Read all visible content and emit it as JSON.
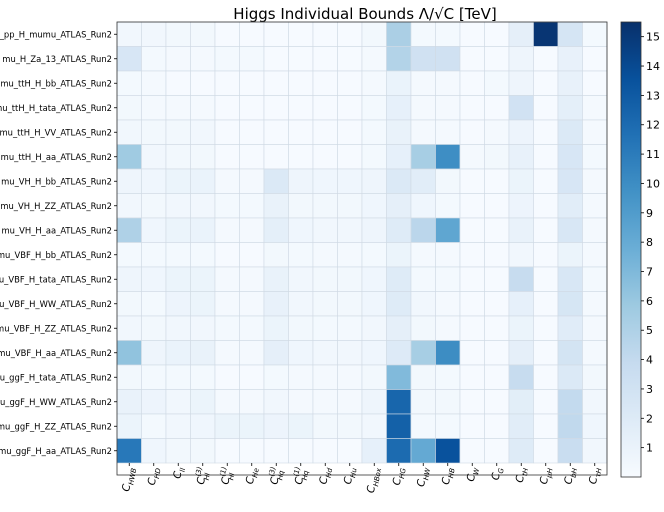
{
  "chart_data": {
    "type": "heatmap",
    "title": "Higgs Individual Bounds Λ/√C [TeV]",
    "x_labels": [
      {
        "base": "C",
        "sub": "HWB",
        "sup": ""
      },
      {
        "base": "C",
        "sub": "HD",
        "sup": ""
      },
      {
        "base": "C",
        "sub": "ll",
        "sup": ""
      },
      {
        "base": "C",
        "sub": "Hl",
        "sup": "(3)"
      },
      {
        "base": "C",
        "sub": "Hl",
        "sup": "(1)"
      },
      {
        "base": "C",
        "sub": "He",
        "sup": ""
      },
      {
        "base": "C",
        "sub": "Hq",
        "sup": "(3)"
      },
      {
        "base": "C",
        "sub": "Hq",
        "sup": "(1)"
      },
      {
        "base": "C",
        "sub": "Hd",
        "sup": ""
      },
      {
        "base": "C",
        "sub": "Hu",
        "sup": ""
      },
      {
        "base": "C",
        "sub": "HBox",
        "sup": ""
      },
      {
        "base": "C",
        "sub": "HG",
        "sup": ""
      },
      {
        "base": "C",
        "sub": "HW",
        "sup": ""
      },
      {
        "base": "C",
        "sub": "HB",
        "sup": ""
      },
      {
        "base": "C",
        "sub": "W",
        "sup": ""
      },
      {
        "base": "C",
        "sub": "G",
        "sup": ""
      },
      {
        "base": "C",
        "sub": "tH",
        "sup": ""
      },
      {
        "base": "C",
        "sub": "μH",
        "sup": ""
      },
      {
        "base": "C",
        "sub": "bH",
        "sup": ""
      },
      {
        "base": "C",
        "sub": "τH",
        "sup": ""
      }
    ],
    "y_labels": [
      "mu_pp_H_mumu_ATLAS_Run2",
      "mu_H_Za_13_ATLAS_Run2",
      "mu_ttH_H_bb_ATLAS_Run2",
      "mu_ttH_H_tata_ATLAS_Run2",
      "mu_ttH_H_VV_ATLAS_Run2",
      "mu_ttH_H_aa_ATLAS_Run2",
      "mu_VH_H_bb_ATLAS_Run2",
      "mu_VH_H_ZZ_ATLAS_Run2",
      "mu_VH_H_aa_ATLAS_Run2",
      "mu_VBF_H_bb_ATLAS_Run2",
      "mu_VBF_H_tata_ATLAS_Run2",
      "mu_VBF_H_WW_ATLAS_Run2",
      "mu_VBF_H_ZZ_ATLAS_Run2",
      "mu_VBF_H_aa_ATLAS_Run2",
      "mu_ggF_H_tata_ATLAS_Run2",
      "mu_ggF_H_WW_ATLAS_Run2",
      "mu_ggF_H_ZZ_ATLAS_Run2",
      "mu_ggF_H_aa_ATLAS_Run2"
    ],
    "values": [
      [
        0.5,
        0.5,
        0.4,
        0.4,
        0.1,
        0.1,
        0.1,
        0.1,
        0.1,
        0.1,
        0.4,
        5.2,
        0.3,
        0.3,
        0.1,
        0.1,
        1.4,
        15.2,
        2.7,
        0.3
      ],
      [
        2.5,
        0.3,
        0.2,
        0.2,
        0.3,
        0.3,
        0.1,
        0.1,
        0.1,
        0.1,
        0.2,
        4.8,
        3.1,
        3.1,
        0.1,
        0.1,
        0.7,
        0.1,
        1.2,
        0.1
      ],
      [
        0.3,
        0.2,
        0.1,
        0.1,
        0.1,
        0.1,
        0.1,
        0.1,
        0.1,
        0.1,
        0.2,
        1.0,
        0.2,
        0.2,
        0.1,
        0.3,
        0.7,
        0.1,
        1.2,
        0.1
      ],
      [
        0.4,
        0.2,
        0.2,
        0.2,
        0.1,
        0.1,
        0.1,
        0.1,
        0.1,
        0.1,
        0.3,
        1.3,
        0.2,
        0.2,
        0.1,
        0.1,
        3.0,
        0.1,
        1.5,
        0.2
      ],
      [
        0.5,
        0.4,
        0.4,
        0.5,
        0.1,
        0.1,
        0.1,
        0.1,
        0.1,
        0.1,
        0.3,
        1.1,
        0.2,
        0.2,
        0.1,
        0.2,
        0.8,
        0.1,
        2.2,
        0.2
      ],
      [
        5.7,
        0.5,
        0.4,
        0.4,
        0.1,
        0.1,
        0.1,
        0.1,
        0.1,
        0.1,
        0.3,
        1.3,
        5.4,
        9.9,
        0.2,
        0.4,
        1.2,
        0.1,
        2.5,
        0.3
      ],
      [
        0.7,
        0.6,
        0.9,
        1.0,
        0.2,
        0.2,
        2.2,
        0.7,
        0.6,
        0.6,
        0.7,
        2.2,
        1.7,
        0.4,
        0.1,
        0.1,
        0.9,
        0.1,
        2.5,
        0.2
      ],
      [
        0.5,
        0.4,
        0.5,
        0.5,
        0.3,
        0.3,
        1.1,
        0.4,
        0.4,
        0.4,
        0.6,
        1.4,
        0.6,
        0.3,
        0.1,
        0.1,
        0.8,
        0.1,
        1.7,
        0.2
      ],
      [
        5.0,
        0.6,
        0.9,
        1.0,
        0.2,
        0.2,
        1.5,
        0.6,
        0.5,
        0.5,
        0.7,
        1.9,
        4.4,
        8.3,
        0.1,
        0.1,
        1.1,
        0.1,
        2.4,
        0.2
      ],
      [
        0.3,
        0.3,
        0.3,
        0.3,
        0.1,
        0.1,
        0.4,
        0.3,
        0.2,
        0.2,
        0.3,
        0.9,
        0.2,
        0.2,
        0.1,
        0.1,
        0.5,
        0.1,
        0.9,
        0.2
      ],
      [
        0.7,
        0.6,
        0.9,
        0.9,
        0.2,
        0.2,
        1.1,
        0.5,
        0.4,
        0.4,
        0.6,
        1.9,
        0.3,
        0.3,
        0.1,
        0.1,
        3.8,
        0.1,
        2.4,
        0.3
      ],
      [
        0.4,
        0.3,
        0.8,
        0.9,
        0.2,
        0.2,
        1.2,
        0.5,
        0.4,
        0.4,
        0.6,
        1.9,
        0.5,
        0.2,
        0.1,
        0.1,
        1.3,
        0.1,
        2.6,
        0.2
      ],
      [
        0.5,
        0.4,
        0.5,
        0.5,
        0.3,
        0.3,
        0.9,
        0.4,
        0.3,
        0.3,
        0.5,
        1.4,
        0.4,
        0.2,
        0.1,
        0.1,
        0.9,
        0.1,
        1.8,
        0.2
      ],
      [
        6.3,
        0.7,
        1.0,
        1.1,
        0.2,
        0.2,
        1.4,
        0.6,
        0.5,
        0.5,
        0.6,
        2.0,
        5.4,
        10.0,
        0.1,
        0.1,
        1.4,
        0.1,
        2.8,
        0.2
      ],
      [
        0.4,
        0.3,
        0.3,
        0.3,
        0.1,
        0.1,
        0.3,
        0.2,
        0.2,
        0.2,
        0.4,
        6.9,
        0.4,
        0.3,
        0.1,
        0.1,
        3.8,
        0.1,
        2.2,
        0.4
      ],
      [
        1.1,
        0.8,
        0.5,
        0.9,
        0.2,
        0.2,
        0.5,
        0.2,
        0.2,
        0.2,
        0.7,
        12.3,
        0.4,
        0.4,
        0.1,
        0.1,
        1.6,
        0.1,
        4.0,
        0.5
      ],
      [
        0.9,
        0.3,
        0.5,
        0.6,
        0.9,
        0.9,
        0.8,
        0.9,
        0.4,
        0.4,
        0.5,
        12.6,
        0.3,
        0.3,
        0.1,
        0.1,
        1.7,
        0.1,
        4.1,
        0.6
      ],
      [
        11.2,
        0.6,
        0.4,
        0.4,
        0.1,
        0.1,
        0.1,
        0.1,
        0.1,
        0.1,
        1.3,
        12.0,
        8.1,
        13.5,
        0.1,
        0.1,
        1.9,
        0.1,
        3.6,
        0.5
      ]
    ],
    "colorbar": {
      "min": 0,
      "max": 15.5,
      "ticks": [
        1,
        2,
        3,
        4,
        5,
        6,
        7,
        8,
        9,
        10,
        11,
        12,
        13,
        14,
        15
      ],
      "colormap": "Blues"
    }
  }
}
